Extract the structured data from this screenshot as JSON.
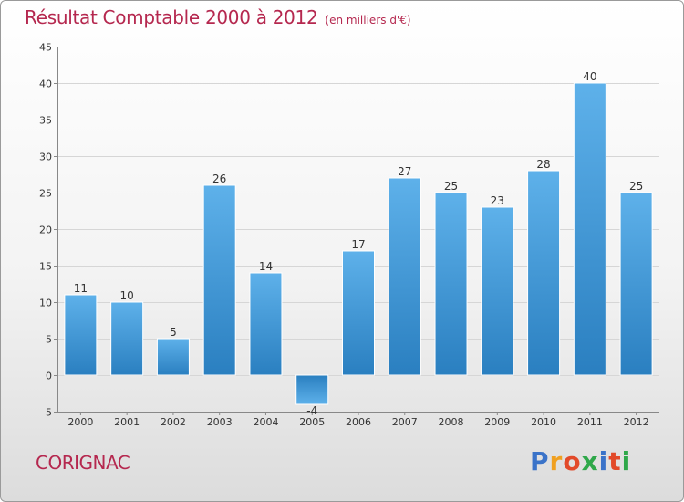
{
  "chart_data": {
    "type": "bar",
    "title": "Résultat Comptable 2000 à 2012",
    "subtitle": "(en milliers d'€)",
    "categories": [
      "2000",
      "2001",
      "2002",
      "2003",
      "2004",
      "2005",
      "2006",
      "2007",
      "2008",
      "2009",
      "2010",
      "2011",
      "2012"
    ],
    "values": [
      11,
      10,
      5,
      26,
      14,
      -4,
      17,
      27,
      25,
      23,
      28,
      40,
      25
    ],
    "ylim": [
      -5,
      45
    ],
    "yticks": [
      -5,
      0,
      5,
      10,
      15,
      20,
      25,
      30,
      35,
      40,
      45
    ],
    "grid": true,
    "xlabel": "",
    "ylabel": ""
  },
  "footer": {
    "city": "CORIGNAC",
    "logo_letters": [
      "P",
      "r",
      "o",
      "x",
      "i",
      "t",
      "i"
    ]
  },
  "colors": {
    "bar_top": "#5eb1ea",
    "bar_bottom": "#2a7fc0",
    "title": "#b5284f",
    "logo": [
      "#3a73c9",
      "#f0a020",
      "#e24a2a",
      "#2fa84a",
      "#3a73c9",
      "#e24a2a",
      "#2fa84a"
    ]
  }
}
